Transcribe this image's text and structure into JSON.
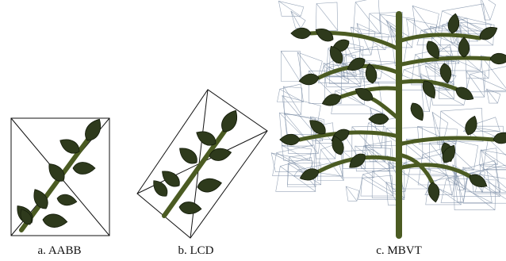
{
  "figure": {
    "panels": [
      {
        "caption": "a. AABB"
      },
      {
        "caption": "b. LCD"
      },
      {
        "caption": "c. MBVT"
      }
    ]
  }
}
